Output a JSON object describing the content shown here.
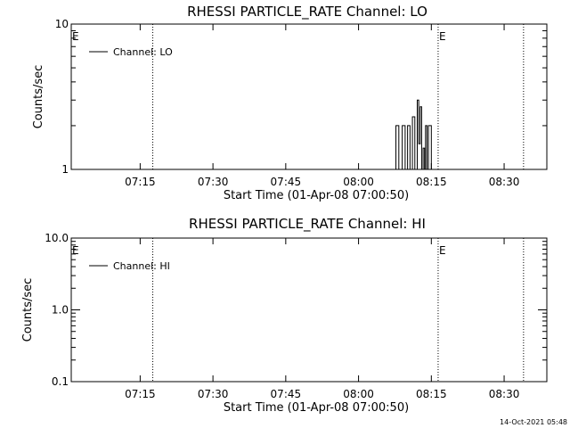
{
  "footer": "14-Oct-2021 05:48",
  "chart_data": [
    {
      "type": "line",
      "title": "RHESSI PARTICLE_RATE Channel: LO",
      "xlabel": "Start Time (01-Apr-08 07:00:50)",
      "ylabel": "Counts/sec",
      "yscale": "log",
      "ylim": [
        1,
        10
      ],
      "xlim": [
        0,
        98
      ],
      "x_unit": "minutes after 07:00:50",
      "x_ticks": [
        {
          "t": 14.2,
          "label": "07:15"
        },
        {
          "t": 29.2,
          "label": "07:30"
        },
        {
          "t": 44.2,
          "label": "07:45"
        },
        {
          "t": 59.2,
          "label": "08:00"
        },
        {
          "t": 74.2,
          "label": "08:15"
        },
        {
          "t": 89.2,
          "label": "08:30"
        }
      ],
      "y_ticks": [
        {
          "v": 1,
          "label": "1"
        },
        {
          "v": 10,
          "label": "10"
        }
      ],
      "y_minor": [
        2,
        3,
        4,
        5,
        6,
        7,
        8,
        9
      ],
      "legend": {
        "placement": "top-left",
        "entries": [
          "Channel: LO"
        ]
      },
      "grid": false,
      "event_lines": [
        {
          "t": 16.8,
          "label": "E",
          "label_at": "left-edge"
        },
        {
          "t": 75.6,
          "label": "E",
          "label_at": "line"
        },
        {
          "t": 93.2,
          "label": "",
          "label_at": "line"
        }
      ],
      "series": [
        {
          "name": "Channel: LO",
          "step": true,
          "x": [
            66.3,
            66.9,
            67.5,
            68.2,
            68.8,
            69.3,
            69.8,
            70.3,
            70.8,
            71.3,
            71.6,
            71.9,
            72.2,
            72.5,
            72.8,
            73.0,
            73.3,
            73.6,
            73.9,
            74.2,
            74.6,
            75.0
          ],
          "y": [
            1,
            2,
            1,
            2,
            1,
            2,
            1,
            2.3,
            1,
            3,
            1.5,
            2.7,
            1,
            1.4,
            1,
            2,
            1,
            2,
            2,
            1,
            1,
            1
          ]
        }
      ]
    },
    {
      "type": "line",
      "title": "RHESSI PARTICLE_RATE Channel: HI",
      "xlabel": "Start Time (01-Apr-08 07:00:50)",
      "ylabel": "Counts/sec",
      "yscale": "log",
      "ylim": [
        0.1,
        10
      ],
      "xlim": [
        0,
        98
      ],
      "x_unit": "minutes after 07:00:50",
      "x_ticks": [
        {
          "t": 14.2,
          "label": "07:15"
        },
        {
          "t": 29.2,
          "label": "07:30"
        },
        {
          "t": 44.2,
          "label": "07:45"
        },
        {
          "t": 59.2,
          "label": "08:00"
        },
        {
          "t": 74.2,
          "label": "08:15"
        },
        {
          "t": 89.2,
          "label": "08:30"
        }
      ],
      "y_ticks": [
        {
          "v": 0.1,
          "label": "0.1"
        },
        {
          "v": 1,
          "label": "1.0"
        },
        {
          "v": 10,
          "label": "10.0"
        }
      ],
      "y_minor": [
        0.2,
        0.3,
        0.4,
        0.5,
        0.6,
        0.7,
        0.8,
        0.9,
        2,
        3,
        4,
        5,
        6,
        7,
        8,
        9
      ],
      "legend": {
        "placement": "top-left",
        "entries": [
          "Channel: HI"
        ]
      },
      "grid": false,
      "event_lines": [
        {
          "t": 16.8,
          "label": "E",
          "label_at": "left-edge"
        },
        {
          "t": 75.6,
          "label": "E",
          "label_at": "line"
        },
        {
          "t": 93.2,
          "label": "",
          "label_at": "line"
        }
      ],
      "series": [
        {
          "name": "Channel: HI",
          "step": true,
          "x": [],
          "y": []
        }
      ]
    }
  ]
}
